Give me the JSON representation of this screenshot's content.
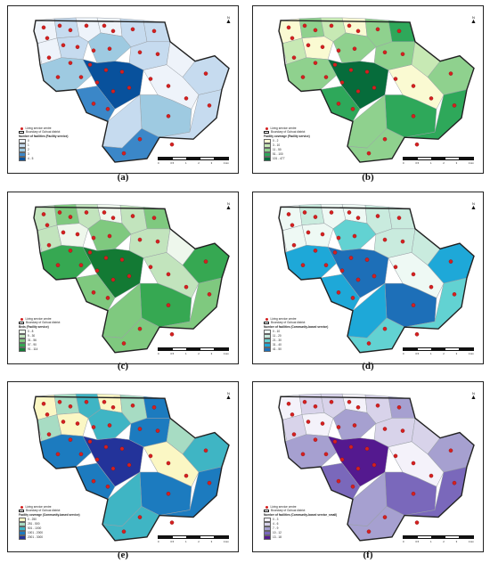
{
  "captions": [
    "(a)",
    "(b)",
    "(c)",
    "(d)",
    "(e)",
    "(f)"
  ],
  "legend_common": {
    "centre_label": "Living service centre",
    "boundary_label": "Boundary of Gohuai district"
  },
  "north_label": "N",
  "scale_ticks": [
    "0",
    "0.5",
    "1",
    "2",
    "3",
    "4 km"
  ],
  "panels": [
    {
      "id": "a",
      "title": "Number of facilities (Facility service)",
      "classes": [
        "0",
        "1",
        "2",
        "3",
        "4 - 5"
      ],
      "colors": [
        "#eef3fa",
        "#c6dbef",
        "#9ecae1",
        "#3b87c8",
        "#08519c"
      ]
    },
    {
      "id": "b",
      "title": "Facility coverage (Facility service)",
      "classes": [
        "0 - 2",
        "3 - 10",
        "11 - 50",
        "51 - 100",
        "101 - 477"
      ],
      "colors": [
        "#fafad2",
        "#c7e9b4",
        "#8fd18e",
        "#2ea85a",
        "#066c3b"
      ]
    },
    {
      "id": "c",
      "title": "Beds (Facility service)",
      "classes": [
        "0 - 8",
        "9 - 30",
        "31 - 56",
        "57 - 90",
        "91 - 114"
      ],
      "colors": [
        "#eef7ec",
        "#c2e4bd",
        "#7fc97f",
        "#36a852",
        "#137a34"
      ]
    },
    {
      "id": "d",
      "title": "Number of facilities (Community-based service)",
      "classes": [
        "0 - 10",
        "11 - 20",
        "21 - 30",
        "31 - 40",
        "41 - 50"
      ],
      "colors": [
        "#eef9f4",
        "#c9ebde",
        "#62d2d2",
        "#1ea8d8",
        "#1d6fb8"
      ]
    },
    {
      "id": "e",
      "title": "Facility coverage (Community-based service)",
      "classes": [
        "0 - 250",
        "251 - 500",
        "501 - 1000",
        "1001 - 2000",
        "2001 - 3000"
      ],
      "colors": [
        "#fbf7c4",
        "#a7dcc3",
        "#3fb5c4",
        "#1c7bbf",
        "#23339a"
      ]
    },
    {
      "id": "f",
      "title": "Number of facilities (Community-based service_small)",
      "classes": [
        "0 - 3",
        "4 - 6",
        "7 - 9",
        "10 - 12",
        "13 - 18"
      ],
      "colors": [
        "#f4f2fa",
        "#d8d3ea",
        "#a6a0d0",
        "#7a68bb",
        "#54198f"
      ]
    }
  ],
  "region_classes": [
    [
      0,
      1,
      0,
      0,
      1,
      1,
      0,
      1,
      2,
      1,
      2,
      4,
      3,
      0,
      1,
      0,
      2,
      1,
      3,
      1
    ],
    [
      0,
      2,
      1,
      0,
      2,
      3,
      1,
      0,
      2,
      2,
      2,
      4,
      3,
      1,
      2,
      0,
      3,
      2,
      2,
      3
    ],
    [
      1,
      2,
      1,
      0,
      1,
      2,
      1,
      0,
      2,
      1,
      3,
      4,
      2,
      0,
      3,
      1,
      3,
      2,
      2,
      2
    ],
    [
      0,
      1,
      0,
      0,
      1,
      1,
      0,
      0,
      2,
      1,
      3,
      4,
      3,
      1,
      3,
      0,
      4,
      3,
      2,
      2
    ],
    [
      0,
      1,
      2,
      0,
      1,
      3,
      1,
      0,
      2,
      3,
      3,
      4,
      3,
      1,
      2,
      0,
      3,
      2,
      2,
      3
    ],
    [
      0,
      1,
      1,
      0,
      1,
      2,
      1,
      0,
      2,
      1,
      2,
      4,
      3,
      1,
      2,
      0,
      3,
      2,
      2,
      3
    ]
  ]
}
